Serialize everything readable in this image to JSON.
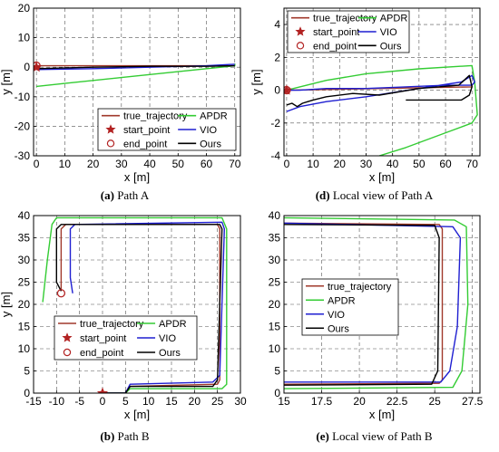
{
  "colors": {
    "true_trajectory": "#a0392b",
    "APDR": "#33cc33",
    "VIO": "#1f1fd1",
    "Ours": "#000000",
    "marker": "#b22222"
  },
  "captions": [
    {
      "label": "(a)",
      "text": " Path A"
    },
    {
      "label": "(d)",
      "text": " Local view of Path A"
    },
    {
      "label": "(b)",
      "text": " Path B"
    },
    {
      "label": "(e)",
      "text": " Local view of Path B"
    }
  ],
  "chart_data": [
    {
      "type": "line",
      "panel": "a",
      "xlabel": "x [m]",
      "ylabel": "y [m]",
      "xlim": [
        -1,
        72
      ],
      "ylim": [
        -30,
        20
      ],
      "xticks": [
        0,
        10,
        20,
        30,
        40,
        50,
        60,
        70
      ],
      "yticks": [
        -30,
        -20,
        -10,
        0,
        10,
        20
      ],
      "grid": true,
      "legend": {
        "placement": "bottom-right",
        "entries": [
          "true_trajectory",
          "APDR",
          "start_point",
          "VIO",
          "end_point",
          "Ours"
        ]
      },
      "series": [
        {
          "name": "true_trajectory",
          "x": [
            0,
            70
          ],
          "y": [
            0.5,
            0.5
          ]
        },
        {
          "name": "APDR",
          "x": [
            0,
            10,
            30,
            50,
            70,
            70
          ],
          "y": [
            -6.5,
            -5.5,
            -3.5,
            -1.5,
            0.5,
            1.2
          ]
        },
        {
          "name": "VIO",
          "x": [
            0,
            20,
            40,
            60,
            70
          ],
          "y": [
            -0.8,
            -0.5,
            0,
            0.5,
            1
          ]
        },
        {
          "name": "Ours",
          "x": [
            0,
            20,
            40,
            60,
            70
          ],
          "y": [
            -0.5,
            0,
            0.3,
            0.3,
            0.5
          ]
        }
      ],
      "start_point": [
        0,
        0
      ],
      "end_point": [
        0,
        0.5
      ]
    },
    {
      "type": "line",
      "panel": "d",
      "xlabel": "x [m]",
      "ylabel": "y [m]",
      "xlim": [
        -1,
        73
      ],
      "ylim": [
        -4,
        5
      ],
      "xticks": [
        0,
        10,
        20,
        30,
        40,
        50,
        60,
        70
      ],
      "yticks": [
        -4,
        -2,
        0,
        2,
        4
      ],
      "grid": true,
      "legend": {
        "placement": "top-left",
        "entries": [
          "true_trajectory",
          "APDR",
          "start_point",
          "VIO",
          "end_point",
          "Ours"
        ]
      },
      "series": [
        {
          "name": "true_trajectory",
          "x": [
            0,
            70,
            70
          ],
          "y": [
            0,
            0.2,
            0.3
          ]
        },
        {
          "name": "APDR",
          "x": [
            0,
            15,
            30,
            50,
            70,
            71,
            72,
            70,
            60,
            45,
            35
          ],
          "y": [
            0,
            0.6,
            1.0,
            1.3,
            1.5,
            0.5,
            -1.5,
            -2,
            -2.6,
            -3.5,
            -4.0
          ]
        },
        {
          "name": "VIO",
          "x": [
            0,
            5,
            15,
            30,
            50,
            66,
            70,
            71,
            70,
            60,
            45,
            30,
            15,
            5,
            0
          ],
          "y": [
            -1.3,
            -1.0,
            -0.7,
            -0.4,
            0.1,
            0.5,
            0.9,
            0.5,
            0.3,
            0.3,
            0.2,
            0.1,
            0.1,
            0.0,
            0.0
          ]
        },
        {
          "name": "Ours",
          "x": [
            0,
            2,
            4,
            6,
            8,
            10,
            15,
            25,
            35,
            50,
            65,
            69,
            70,
            69,
            66,
            55,
            45
          ],
          "y": [
            -0.9,
            -0.8,
            -1.0,
            -0.8,
            -0.7,
            -0.6,
            -0.4,
            -0.2,
            -0.3,
            0.1,
            0.3,
            0.9,
            0.2,
            -0.3,
            -0.6,
            -0.6,
            -0.6
          ]
        }
      ],
      "start_point": [
        0,
        0
      ],
      "end_point": [
        0,
        0
      ]
    },
    {
      "type": "line",
      "panel": "b",
      "xlabel": "x [m]",
      "ylabel": "y [m]",
      "xlim": [
        -15,
        30
      ],
      "ylim": [
        0,
        40
      ],
      "xticks": [
        -15,
        -10,
        -5,
        0,
        5,
        10,
        15,
        20,
        25,
        30
      ],
      "yticks": [
        0,
        5,
        10,
        15,
        20,
        25,
        30,
        35,
        40
      ],
      "grid": true,
      "legend": {
        "placement": "lower-middle",
        "entries": [
          "true_trajectory",
          "APDR",
          "start_point",
          "VIO",
          "end_point",
          "Ours"
        ]
      },
      "series": [
        {
          "name": "true_trajectory",
          "x": [
            0,
            5,
            6,
            25,
            25.5,
            25.5,
            25,
            -8,
            -9,
            -9
          ],
          "y": [
            0,
            0,
            1.5,
            2,
            3,
            37,
            38,
            38,
            37,
            23
          ]
        },
        {
          "name": "APDR",
          "x": [
            0,
            5,
            6,
            26,
            27,
            27,
            26,
            -10,
            -11,
            -12,
            -13
          ],
          "y": [
            0,
            0,
            1,
            1,
            2,
            37,
            39.5,
            39.5,
            38,
            30,
            20.5
          ]
        },
        {
          "name": "VIO",
          "x": [
            0,
            5,
            6,
            24,
            25.5,
            26.5,
            26,
            -6,
            -7,
            -7,
            -6.5
          ],
          "y": [
            0,
            0,
            2,
            2.5,
            4,
            37,
            38.5,
            38,
            37,
            26,
            22.5
          ]
        },
        {
          "name": "Ours",
          "x": [
            0,
            5,
            6,
            24,
            25,
            26,
            25.5,
            -9,
            -10,
            -10,
            -9
          ],
          "y": [
            0,
            0,
            1.5,
            1.5,
            3,
            37,
            38,
            38,
            37,
            25,
            23
          ]
        }
      ],
      "start_point": [
        0,
        0
      ],
      "end_point": [
        -9,
        22.5
      ]
    },
    {
      "type": "line",
      "panel": "e",
      "xlabel": "x [m]",
      "ylabel": "",
      "xlim": [
        15,
        28
      ],
      "ylim": [
        0,
        40
      ],
      "xticks": [
        "15",
        "17.5",
        "20",
        "22.5",
        "25",
        "27.5"
      ],
      "yticks": [
        0,
        5,
        10,
        15,
        20,
        25,
        30,
        35,
        40
      ],
      "grid": true,
      "legend": {
        "placement": "left-middle",
        "entries": [
          "true_trajectory",
          "APDR",
          "VIO",
          "Ours"
        ]
      },
      "series": [
        {
          "name": "true_trajectory",
          "x": [
            15,
            25.3,
            25.5,
            25.5,
            25.3,
            15
          ],
          "y": [
            38.3,
            38,
            37,
            3,
            2.2,
            2
          ]
        },
        {
          "name": "APDR",
          "x": [
            15,
            26.3,
            27.1,
            27.2,
            26.8,
            26.2,
            15
          ],
          "y": [
            39.5,
            39,
            37.5,
            20,
            5,
            1.3,
            1
          ]
        },
        {
          "name": "VIO",
          "x": [
            15,
            26.2,
            26.7,
            26.5,
            26,
            25.4,
            15
          ],
          "y": [
            38.3,
            37.5,
            35,
            15,
            5,
            2.5,
            2.5
          ]
        },
        {
          "name": "Ours",
          "x": [
            15,
            25,
            25.3,
            25.2,
            24.8,
            15
          ],
          "y": [
            38,
            37.8,
            35,
            5,
            2,
            1.8
          ]
        }
      ]
    }
  ]
}
